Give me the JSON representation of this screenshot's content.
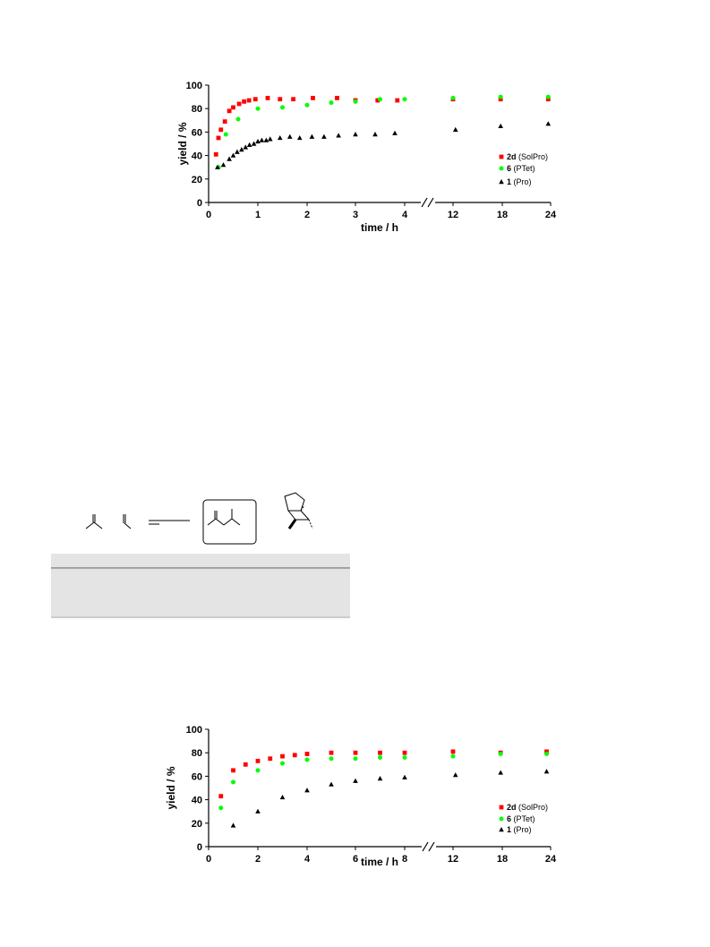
{
  "charts": [
    {
      "id": "top",
      "x_ticks": [
        "0",
        "1",
        "2",
        "3",
        "4",
        "12",
        "18",
        "24"
      ],
      "y_ticks": [
        "0",
        "20",
        "40",
        "60",
        "80",
        "100"
      ],
      "xlabel": "time / h",
      "ylabel": "yield / %",
      "legend": [
        {
          "bold": "2d",
          "rest": " (SolPro)",
          "color": "#ff0000",
          "marker": "square"
        },
        {
          "bold": "6",
          "rest": " (PTet)",
          "color": "#00ff00",
          "marker": "circle"
        },
        {
          "bold": "1",
          "rest": " (Pro)",
          "color": "#000000",
          "marker": "triangle"
        }
      ]
    },
    {
      "id": "bottom",
      "x_ticks": [
        "0",
        "2",
        "4",
        "6",
        "8",
        "12",
        "18",
        "24"
      ],
      "y_ticks": [
        "0",
        "20",
        "40",
        "60",
        "80",
        "100"
      ],
      "xlabel": "time / h",
      "ylabel": "yield / %",
      "legend": [
        {
          "bold": "2d",
          "rest": " (SolPro)",
          "color": "#ff0000",
          "marker": "square"
        },
        {
          "bold": "6",
          "rest": " (PTet)",
          "color": "#00ff00",
          "marker": "circle"
        },
        {
          "bold": "1",
          "rest": " (Pro)",
          "color": "#000000",
          "marker": "triangle"
        }
      ]
    }
  ],
  "chart_data": [
    {
      "type": "scatter",
      "xlabel": "time / h",
      "ylabel": "yield / %",
      "ylim": [
        0,
        100
      ],
      "x_axis_break": [
        4,
        12
      ],
      "series": [
        {
          "name": "2d (SolPro)",
          "color": "#ff0000",
          "marker": "square",
          "x": [
            0.15,
            0.2,
            0.25,
            0.33,
            0.42,
            0.5,
            0.62,
            0.72,
            0.82,
            0.95,
            1.2,
            1.45,
            1.72,
            2.12,
            2.62,
            3.0,
            3.45,
            3.85,
            12,
            17.8,
            23.7
          ],
          "y": [
            41,
            55,
            62,
            69,
            78,
            81,
            84,
            86,
            87,
            88,
            89,
            88,
            88,
            89,
            89,
            87,
            87,
            87,
            88,
            88,
            88
          ]
        },
        {
          "name": "6 (PTet)",
          "color": "#00ff00",
          "marker": "circle",
          "x": [
            0.2,
            0.35,
            0.6,
            1.0,
            1.5,
            2.0,
            2.5,
            3.0,
            3.5,
            4.0,
            12,
            17.8,
            23.7
          ],
          "y": [
            30,
            58,
            71,
            80,
            81,
            83,
            85,
            86,
            88,
            88,
            89,
            90,
            90
          ]
        },
        {
          "name": "1 (Pro)",
          "color": "#000000",
          "marker": "triangle",
          "x": [
            0.18,
            0.3,
            0.42,
            0.5,
            0.58,
            0.67,
            0.75,
            0.83,
            0.92,
            1.0,
            1.08,
            1.17,
            1.25,
            1.45,
            1.65,
            1.85,
            2.1,
            2.35,
            2.65,
            3.0,
            3.4,
            3.8,
            12.3,
            17.8,
            23.7
          ],
          "y": [
            30,
            32,
            37,
            40,
            43,
            45,
            47,
            49,
            50,
            52,
            53,
            53,
            54,
            55,
            56,
            55,
            56,
            56,
            57,
            58,
            58,
            59,
            62,
            65,
            67
          ]
        }
      ]
    },
    {
      "type": "scatter",
      "xlabel": "time / h",
      "ylabel": "yield / %",
      "ylim": [
        0,
        100
      ],
      "x_axis_break": [
        8,
        12
      ],
      "series": [
        {
          "name": "2d (SolPro)",
          "color": "#ff0000",
          "marker": "square",
          "x": [
            0.5,
            1.0,
            1.5,
            2.0,
            2.5,
            3.0,
            3.5,
            4.0,
            5.0,
            6.0,
            7.0,
            8.0,
            12,
            17.8,
            23.5
          ],
          "y": [
            43,
            65,
            70,
            73,
            75,
            77,
            78,
            79,
            80,
            80,
            80,
            80,
            81,
            80,
            81
          ]
        },
        {
          "name": "6 (PTet)",
          "color": "#00ff00",
          "marker": "circle",
          "x": [
            0.5,
            1.0,
            2.0,
            3.0,
            4.0,
            5.0,
            6.0,
            7.0,
            8.0,
            12,
            17.8,
            23.5
          ],
          "y": [
            33,
            55,
            65,
            71,
            74,
            75,
            75,
            76,
            76,
            77,
            79,
            79
          ]
        },
        {
          "name": "1 (Pro)",
          "color": "#000000",
          "marker": "triangle",
          "x": [
            1.0,
            2.0,
            3.0,
            4.0,
            5.0,
            6.0,
            7.0,
            8.0,
            12.3,
            17.8,
            23.5
          ],
          "y": [
            18,
            30,
            42,
            48,
            53,
            56,
            58,
            59,
            61,
            63,
            64
          ]
        }
      ]
    }
  ]
}
